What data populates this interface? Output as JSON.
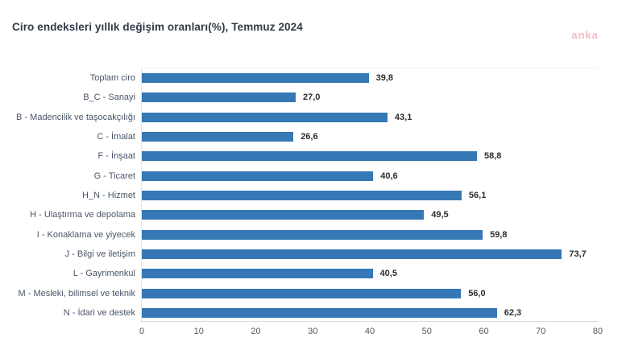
{
  "title": "Ciro endeksleri yıllık değişim oranları(%), Temmuz 2024",
  "watermark": "anka",
  "colors": {
    "bar": "#3578b5",
    "title_text": "#333a47",
    "category_label": "#4a5568",
    "value_label": "#2e2e2e",
    "tick_label": "#595959",
    "axis_line": "#d9d9d9",
    "watermark": "#f2bcc3",
    "background": "#ffffff"
  },
  "chart_data": {
    "type": "bar",
    "orientation": "horizontal",
    "title": "Ciro endeksleri yıllık değişim oranları(%), Temmuz 2024",
    "categories": [
      "Toplam ciro",
      "B_C - Sanayi",
      "B - Madencilik ve taşocakçılığı",
      "C - İmalat",
      "F - İnşaat",
      "G - Ticaret",
      "H_N - Hizmet",
      "H - Ulaştırma ve depolama",
      "I - Konaklama ve yiyecek",
      "J - Bilgi ve iletişim",
      "L - Gayrimenkul",
      "M - Mesleki, bilimsel ve teknik",
      "N - İdari ve destek"
    ],
    "values": [
      39.8,
      27.0,
      43.1,
      26.6,
      58.8,
      40.6,
      56.1,
      49.5,
      59.8,
      73.7,
      40.5,
      56.0,
      62.3
    ],
    "value_labels": [
      "39,8",
      "27,0",
      "43,1",
      "26,6",
      "58,8",
      "40,6",
      "56,1",
      "49,5",
      "59,8",
      "73,7",
      "40,5",
      "56,0",
      "62,3"
    ],
    "xlabel": "",
    "ylabel": "",
    "xlim": [
      0,
      80
    ],
    "xticks": [
      0,
      10,
      20,
      30,
      40,
      50,
      60,
      70,
      80
    ],
    "grid": false,
    "legend": false
  }
}
